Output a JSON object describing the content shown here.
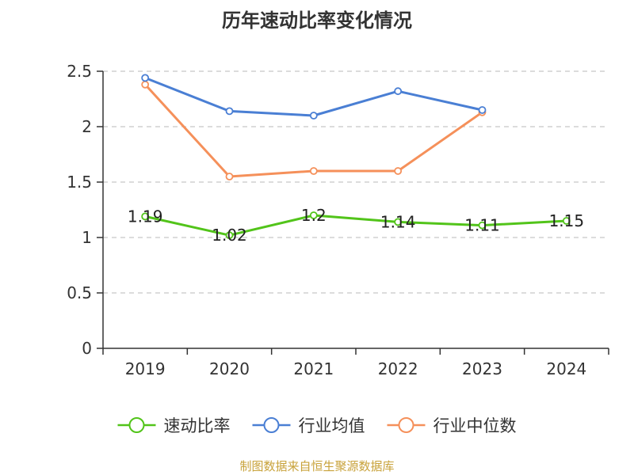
{
  "chart_data": {
    "type": "line",
    "title": "历年速动比率变化情况",
    "categories": [
      "2019",
      "2020",
      "2021",
      "2022",
      "2023",
      "2024"
    ],
    "ylim": [
      0,
      2.5
    ],
    "y_ticks": [
      "0",
      "0.5",
      "1",
      "1.5",
      "2",
      "2.5"
    ],
    "grid": true,
    "legend_position": "bottom",
    "series": [
      {
        "name": "速动比率",
        "color": "#52c41a",
        "values": [
          1.19,
          1.02,
          1.2,
          1.14,
          1.11,
          1.15
        ],
        "labels": [
          "1.19",
          "1.02",
          "1.2",
          "1.14",
          "1.11",
          "1.15"
        ]
      },
      {
        "name": "行业均值",
        "color": "#4a7fd4",
        "values": [
          2.44,
          2.14,
          2.1,
          2.32,
          2.15,
          null
        ]
      },
      {
        "name": "行业中位数",
        "color": "#f5905a",
        "values": [
          2.38,
          1.55,
          1.6,
          1.6,
          2.13,
          null
        ]
      }
    ]
  },
  "source": "制图数据来自恒生聚源数据库"
}
